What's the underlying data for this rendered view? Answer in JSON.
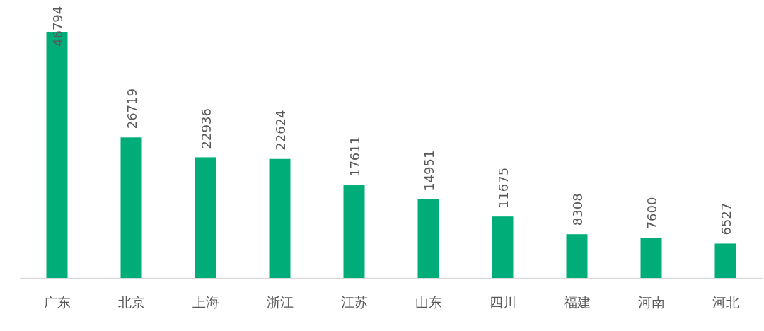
{
  "chart_data": {
    "type": "bar",
    "categories": [
      "广东",
      "北京",
      "上海",
      "浙江",
      "江苏",
      "山东",
      "四川",
      "福建",
      "河南",
      "河北"
    ],
    "values": [
      46794,
      26719,
      22936,
      22624,
      17611,
      14951,
      11675,
      8308,
      7600,
      6527
    ],
    "color": "#00ad78",
    "data_labels": true
  }
}
